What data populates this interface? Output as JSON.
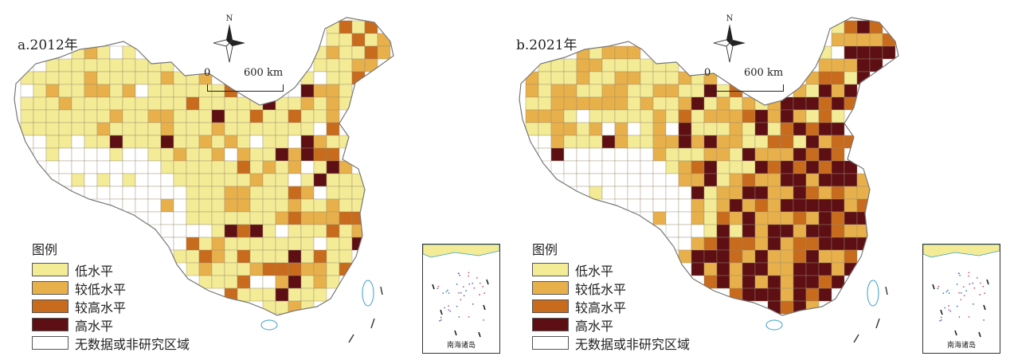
{
  "north_label": "N",
  "scale": {
    "zero": "0",
    "distance": "600 km"
  },
  "inset_caption": "南海诸岛",
  "legend": {
    "title": "图例",
    "items": [
      {
        "label": "低水平",
        "color": "#f3eb95"
      },
      {
        "label": "较低水平",
        "color": "#e8b04a"
      },
      {
        "label": "较高水平",
        "color": "#c86b1c"
      },
      {
        "label": "高水平",
        "color": "#5e0f14"
      },
      {
        "label": "无数据或非研究区域",
        "color": "#ffffff"
      }
    ]
  },
  "panels": [
    {
      "label": "a.2012年",
      "high_share": 0.05,
      "midhigh_share": 0.09,
      "midlow_share": 0.16
    },
    {
      "label": "b.2021年",
      "high_share": 0.36,
      "midhigh_share": 0.24,
      "midlow_share": 0.22
    }
  ]
}
